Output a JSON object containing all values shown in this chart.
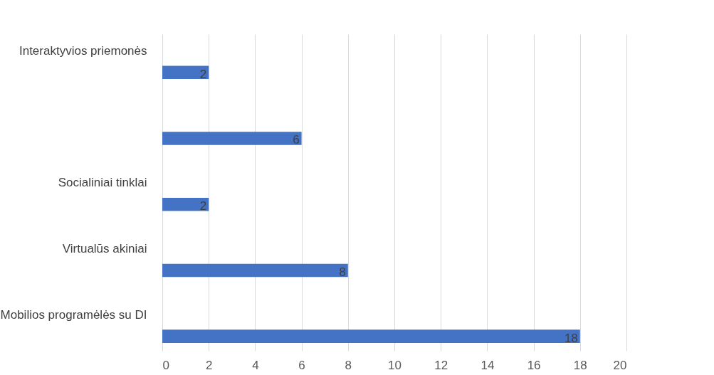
{
  "chart_data": {
    "type": "bar",
    "orientation": "horizontal",
    "categories": [
      "Interaktyvios priemonės",
      null,
      "Socialiniai tinklai",
      "Virtualūs akiniai",
      "Mobilios programėlės su DI"
    ],
    "values": [
      2,
      6,
      2,
      8,
      18
    ],
    "color": "#4472c4",
    "xlim": [
      0,
      20
    ],
    "xticks": [
      0,
      2,
      4,
      6,
      8,
      10,
      12,
      14,
      16,
      18,
      20
    ],
    "grid": "x",
    "data_labels": true
  }
}
